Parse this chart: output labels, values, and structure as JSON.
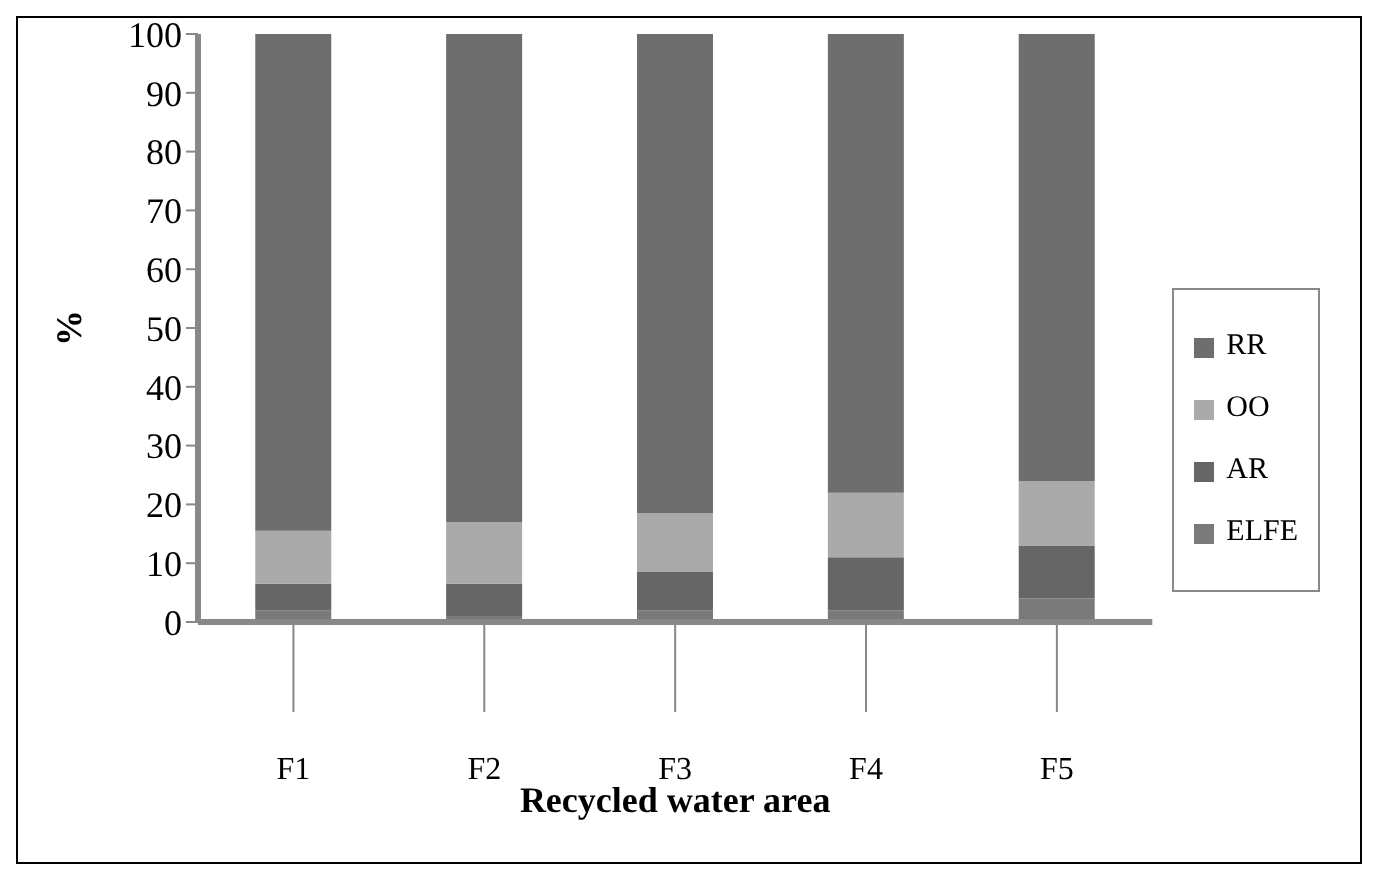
{
  "chart_data": {
    "type": "bar",
    "stacked": true,
    "ylabel": "%",
    "xlabel": "Recycled water area",
    "categories": [
      "F1",
      "F2",
      "F3",
      "F4",
      "F5"
    ],
    "series": [
      {
        "name": "ELFE",
        "color": "#7a7a7a",
        "values": [
          2,
          1,
          2,
          2,
          4
        ]
      },
      {
        "name": "AR",
        "color": "#666666",
        "values": [
          4.5,
          5.5,
          6.5,
          9,
          9
        ]
      },
      {
        "name": "OO",
        "color": "#aaaaaa",
        "values": [
          9,
          10.5,
          10,
          11,
          11
        ]
      },
      {
        "name": "RR",
        "color": "#6e6e6e",
        "values": [
          84.5,
          83,
          81.5,
          78,
          76
        ]
      }
    ],
    "ylim": [
      0,
      100
    ],
    "yticks": [
      0,
      10,
      20,
      30,
      40,
      50,
      60,
      70,
      80,
      90,
      100
    ],
    "grid": false,
    "legend": "right"
  }
}
